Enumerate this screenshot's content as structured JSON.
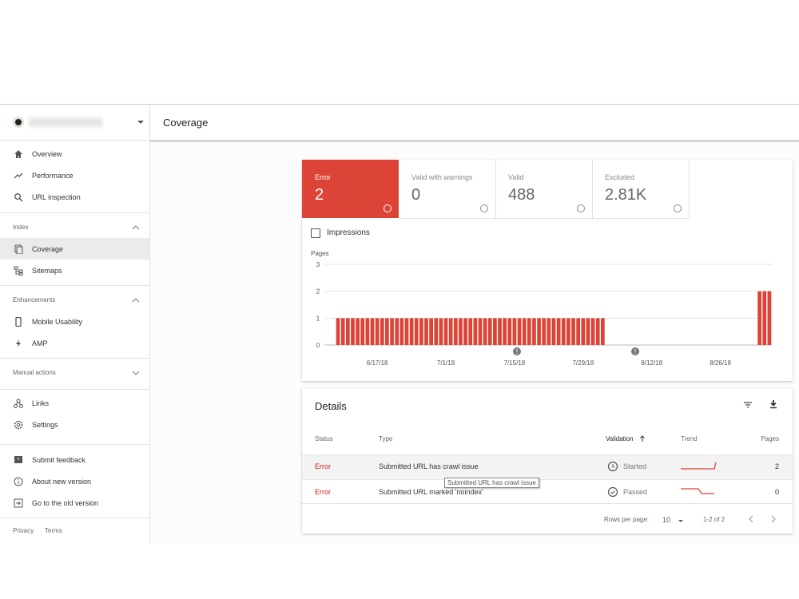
{
  "header": {
    "title": "Coverage"
  },
  "sidebar": {
    "nav": [
      "Overview",
      "Performance",
      "URL inspection"
    ],
    "sections": [
      {
        "title": "Index",
        "items": [
          "Coverage",
          "Sitemaps"
        ]
      },
      {
        "title": "Enhancements",
        "items": [
          "Mobile Usability",
          "AMP"
        ]
      },
      {
        "title": "Manual actions"
      }
    ],
    "links": [
      "Links",
      "Settings"
    ],
    "footer_links": [
      "Submit feedback",
      "About new version",
      "Go to the old version"
    ],
    "legal": [
      "Privacy",
      "Terms"
    ]
  },
  "cards": [
    {
      "label": "Error",
      "value": "2"
    },
    {
      "label": "Valid with warnings",
      "value": "0"
    },
    {
      "label": "Valid",
      "value": "488"
    },
    {
      "label": "Excluded",
      "value": "2.81K"
    }
  ],
  "impressions": "Impressions",
  "chart_data": {
    "type": "bar",
    "y_label": "Pages",
    "color": "#db4437",
    "grid": true,
    "ylim": [
      0,
      3
    ],
    "yticks": [
      0,
      1,
      2,
      3
    ],
    "categories": [
      null,
      null,
      null,
      null,
      null,
      null,
      null,
      null,
      "6/17/18",
      null,
      null,
      null,
      null,
      null,
      null,
      null,
      null,
      null,
      null,
      null,
      null,
      null,
      "7/1/18",
      null,
      null,
      null,
      null,
      null,
      null,
      null,
      null,
      null,
      null,
      null,
      null,
      null,
      "7/15/18",
      null,
      null,
      null,
      null,
      null,
      null,
      null,
      null,
      null,
      null,
      null,
      null,
      null,
      "7/29/18",
      null,
      null,
      null,
      null,
      null,
      null,
      null,
      null,
      null,
      null,
      null,
      null,
      null,
      "8/12/18",
      null,
      null,
      null,
      null,
      null,
      null,
      null,
      null,
      null,
      null,
      null,
      null,
      null,
      "8/26/18",
      null,
      null,
      null,
      null,
      null,
      null,
      null,
      null,
      null,
      null
    ],
    "values": [
      1,
      1,
      1,
      1,
      1,
      1,
      1,
      1,
      1,
      1,
      1,
      1,
      1,
      1,
      1,
      1,
      1,
      1,
      1,
      1,
      1,
      1,
      1,
      1,
      1,
      1,
      1,
      1,
      1,
      1,
      1,
      1,
      1,
      1,
      1,
      1,
      1,
      1,
      1,
      1,
      1,
      1,
      1,
      1,
      1,
      1,
      1,
      1,
      1,
      1,
      1,
      1,
      1,
      1,
      1,
      0,
      0,
      0,
      0,
      0,
      0,
      0,
      0,
      0,
      0,
      0,
      0,
      0,
      0,
      0,
      0,
      0,
      0,
      0,
      0,
      0,
      0,
      0,
      0,
      0,
      0,
      0,
      0,
      0,
      0,
      0,
      2,
      2,
      2
    ]
  },
  "details": {
    "title": "Details",
    "columns": [
      "Status",
      "Type",
      "Validation",
      "Trend",
      "Pages"
    ],
    "rows": [
      [
        "Error",
        "Submitted URL has crawl issue",
        "Started",
        2
      ],
      [
        "Error",
        "Submitted URL marked 'noindex'",
        "Passed",
        0
      ]
    ],
    "tooltip": "Submitted URL has crawl issue",
    "pagination": {
      "rows_per_page_label": "Rows per page:",
      "rows_per_page": "10",
      "range": "1-2 of 2"
    }
  }
}
